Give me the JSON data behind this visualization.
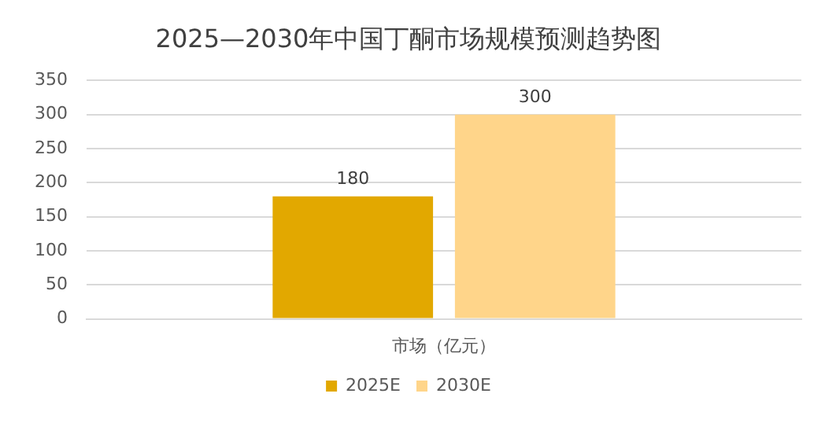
{
  "chart_data": {
    "type": "bar",
    "title": "2025—2030年中国丁酮市场规模预测趋势图",
    "categories": [
      "市场（亿元）"
    ],
    "series": [
      {
        "name": "2025E",
        "color": "#e2a800",
        "values": [
          180
        ]
      },
      {
        "name": "2030E",
        "color": "#ffd58a",
        "values": [
          300
        ]
      }
    ],
    "ylim": [
      0,
      350
    ],
    "yticks": [
      0,
      50,
      100,
      150,
      200,
      250,
      300,
      350
    ],
    "grid": "y",
    "legend": "bottom",
    "data_labels": true
  }
}
